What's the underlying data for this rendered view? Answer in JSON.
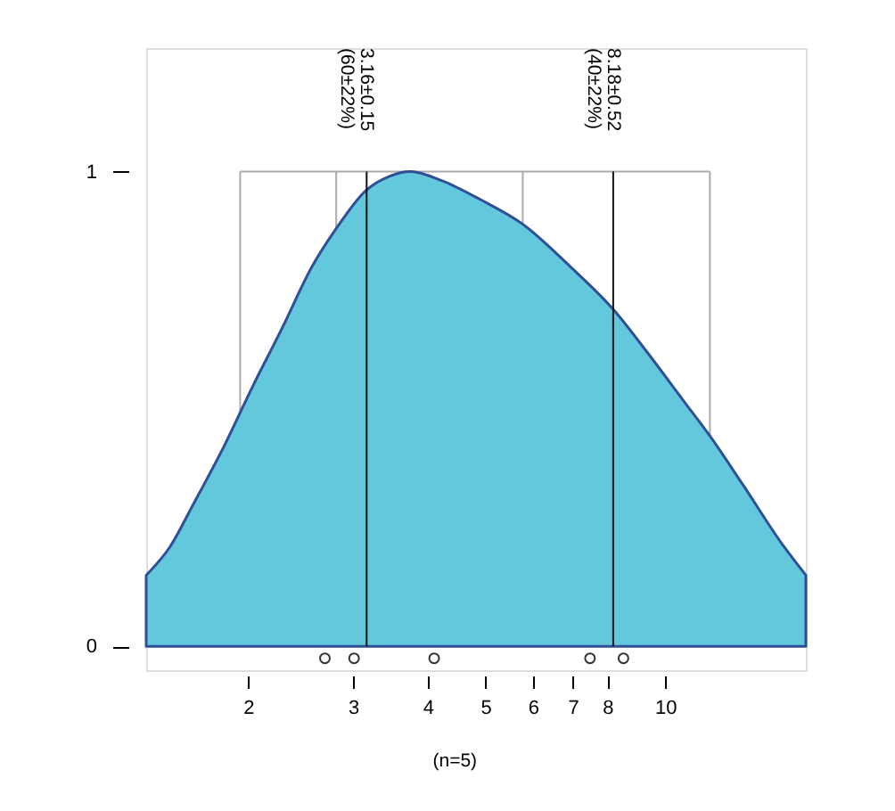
{
  "chart_data": {
    "type": "area",
    "xlim": [
      1.35,
      17.2
    ],
    "ylim": [
      -0.05,
      1.26
    ],
    "log": "x",
    "xticks": [
      2,
      3,
      4,
      5,
      6,
      7,
      8,
      10
    ],
    "yticks": [
      0,
      1
    ],
    "grid": false,
    "series": [
      {
        "type": "line",
        "color": "#aaaaaa",
        "x": [
          1.94,
          11.88
        ],
        "values": [
          1.0,
          1.0
        ]
      },
      {
        "color": "#64c8dc",
        "x": [
          1.35,
          1.48,
          1.62,
          1.82,
          2.04,
          2.28,
          2.56,
          2.81,
          3.15,
          3.45,
          3.74,
          4.24,
          4.92,
          5.76,
          6.93,
          8.18,
          9.32,
          10.69,
          11.93,
          13.5,
          15.81,
          17.2
        ],
        "values": [
          0.15,
          0.21,
          0.3,
          0.42,
          0.55,
          0.67,
          0.8,
          0.88,
          0.96,
          0.99,
          1.0,
          0.98,
          0.94,
          0.89,
          0.8,
          0.71,
          0.62,
          0.52,
          0.44,
          0.34,
          0.21,
          0.15
        ]
      },
      {
        "type": "scatter",
        "color": "#333333",
        "marker": "circle",
        "x": [
          2.69,
          3.01,
          4.1,
          7.48,
          8.51
        ],
        "values": [
          -0.025,
          -0.025,
          -0.025,
          -0.025,
          -0.025
        ]
      }
    ],
    "ref_lines": [
      {
        "axis": "x",
        "value": 1.94,
        "color": "#aaaaaa"
      },
      {
        "axis": "x",
        "value": 2.81,
        "color": "#aaaaaa"
      },
      {
        "axis": "x",
        "value": 5.77,
        "color": "#aaaaaa"
      },
      {
        "axis": "x",
        "value": 11.88,
        "color": "#aaaaaa"
      },
      {
        "axis": "x",
        "value": 3.16,
        "label": "3.16±0.15 (60±22%)",
        "color": "#111111"
      },
      {
        "axis": "x",
        "value": 8.18,
        "label": "8.18±0.52 (40±22%)",
        "color": "#111111"
      }
    ],
    "annotations": [
      "(n=5)"
    ]
  }
}
